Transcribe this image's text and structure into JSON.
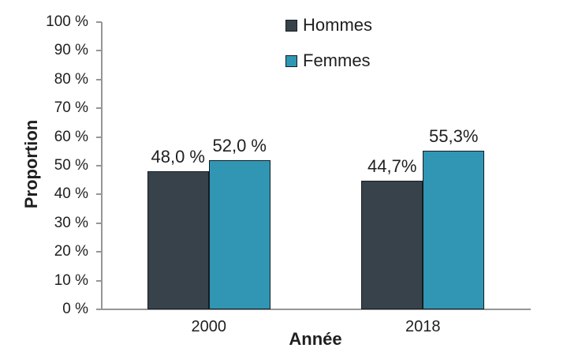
{
  "chart_data": {
    "type": "bar",
    "title": "",
    "categories": [
      "2000",
      "2018"
    ],
    "series": [
      {
        "name": "Hommes",
        "color": "#38424B",
        "values": [
          48.0,
          44.7
        ],
        "value_labels": [
          "48,0 %",
          "44,7%"
        ]
      },
      {
        "name": "Femmes",
        "color": "#3096B4",
        "values": [
          52.0,
          55.3
        ],
        "value_labels": [
          "52,0 %",
          "55,3%"
        ]
      }
    ],
    "xlabel": "Année",
    "ylabel": "Proportion",
    "ylim": [
      0,
      100
    ],
    "ytick_step": 10,
    "ytick_labels": [
      "0 %",
      "10 %",
      "20 %",
      "30 %",
      "40 %",
      "50 %",
      "60 %",
      "70 %",
      "80 %",
      "90 %",
      "100 %"
    ],
    "grid": false,
    "legend_position": "top-center",
    "colors": {
      "bar_border": "#161C22",
      "axis_line": "#969696",
      "text": "#1F1F1F",
      "background": "#FFFFFF"
    }
  }
}
